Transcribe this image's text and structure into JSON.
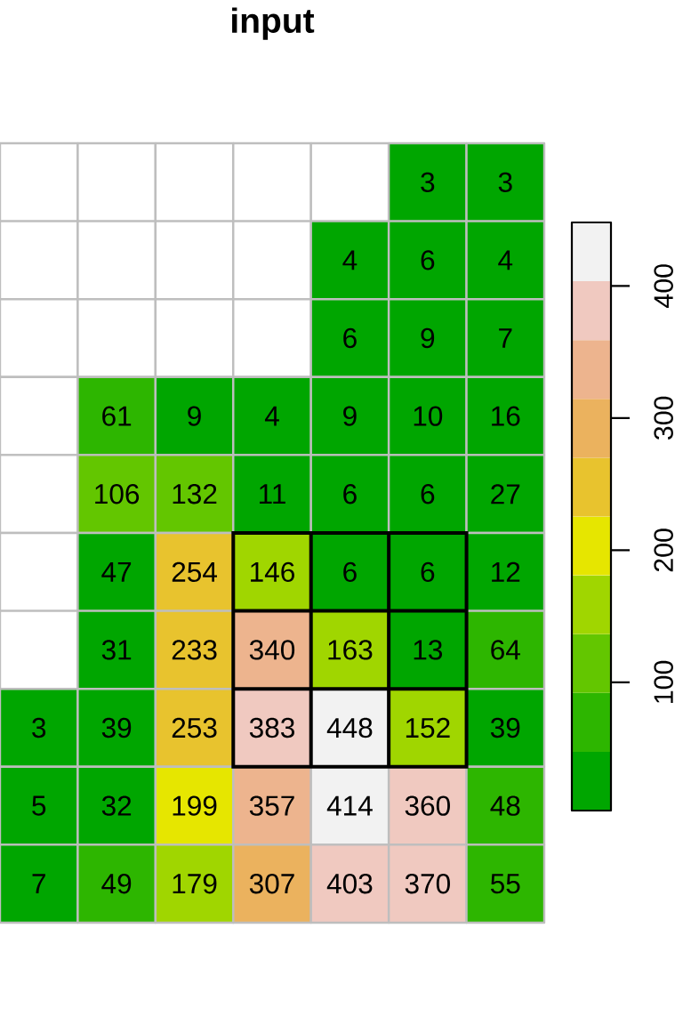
{
  "chart_data": {
    "type": "heatmap",
    "title": "input",
    "categories": [
      null,
      null,
      null,
      null,
      null,
      null,
      null
    ],
    "y_categories": [
      null,
      null,
      null,
      null,
      null,
      null,
      null,
      null,
      null,
      null
    ],
    "cells": [
      [
        null,
        null,
        null,
        null,
        null,
        3,
        3
      ],
      [
        null,
        null,
        null,
        null,
        4,
        6,
        4
      ],
      [
        null,
        null,
        null,
        null,
        6,
        9,
        7
      ],
      [
        null,
        61,
        9,
        4,
        9,
        10,
        16
      ],
      [
        null,
        106,
        132,
        11,
        6,
        6,
        27
      ],
      [
        null,
        47,
        254,
        146,
        6,
        6,
        12
      ],
      [
        null,
        31,
        233,
        340,
        163,
        13,
        64
      ],
      [
        3,
        39,
        253,
        383,
        448,
        152,
        39
      ],
      [
        5,
        32,
        199,
        357,
        414,
        360,
        48
      ],
      [
        7,
        49,
        179,
        307,
        403,
        370,
        55
      ]
    ],
    "clim": [
      3,
      448
    ],
    "cticks": [
      100,
      200,
      300,
      400
    ],
    "colors": [
      "#00A600",
      "#2DB600",
      "#63C600",
      "#A0D600",
      "#E6E600",
      "#E8C32E",
      "#EBB25E",
      "#EDB48E",
      "#F0C9C0",
      "#F2F2F2"
    ],
    "data_labels": true
  }
}
